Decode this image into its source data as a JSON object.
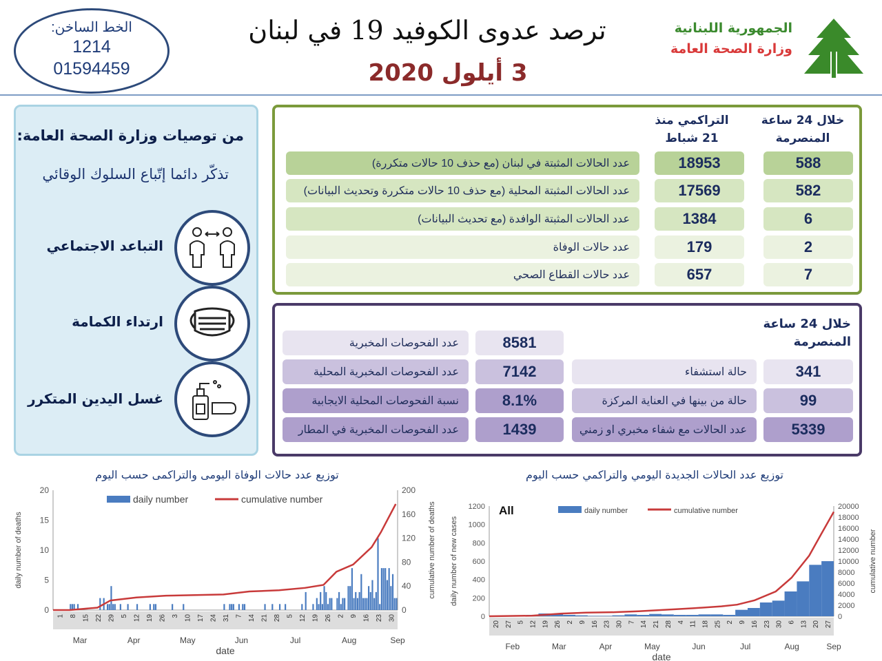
{
  "header": {
    "hotline_label": "الخط الساخن:",
    "hotline_1": "1214",
    "hotline_2": "01594459",
    "title": "ترصد عدوى الكوفيد 19 في لبنان",
    "date": "3 أيلول 2020",
    "republic": "الجمهورية اللبنانية",
    "ministry": "وزارة الصحة العامة",
    "logo_icon": "cedar-tree-icon"
  },
  "recommendations": {
    "heading": "من توصيات وزارة الصحة العامة:",
    "subheading": "تذكّر دائما إتّباع السلوك الوقائي",
    "items": [
      {
        "label": "التباعد الاجتماعي",
        "icon": "social-distancing-icon"
      },
      {
        "label": "ارتداء الكمامة",
        "icon": "face-mask-icon"
      },
      {
        "label": "غسل اليدين المتكرر",
        "icon": "hand-washing-icon"
      }
    ]
  },
  "summary": {
    "col_24h": "خلال 24 ساعة المنصرمة",
    "col_cum": "التراكمي منذ 21 شباط",
    "rows": [
      {
        "label": "عدد الحالات المثبتة في لبنان  (مع حذف 10 حالات متكررة)",
        "cum": "18953",
        "d24": "588"
      },
      {
        "label": "عدد الحالات المثبتة المحلية (مع حذف 10 حالات متكررة وتحديث البيانات)",
        "cum": "17569",
        "d24": "582"
      },
      {
        "label": "عدد الحالات المثبتة الوافدة (مع تحديث البيانات)",
        "cum": "1384",
        "d24": "6"
      },
      {
        "label": "عدد حالات الوفاة",
        "cum": "179",
        "d24": "2"
      },
      {
        "label": "عدد حالات القطاع الصحي",
        "cum": "657",
        "d24": "7"
      }
    ]
  },
  "last24": {
    "heading": "خلال 24 ساعة المنصرمة",
    "tests": [
      {
        "label": "عدد الفحوصات المخبرية",
        "value": "8581"
      },
      {
        "label": "عدد الفحوصات المخبرية  المحلية",
        "value": "7142"
      },
      {
        "label": "نسبة الفحوصات المحلية الايجابية",
        "value": "8.1%"
      },
      {
        "label": "عدد الفحوصات المخبرية في المطار",
        "value": "1439"
      }
    ],
    "hospital": [
      {
        "label": "حالة استشفاء",
        "value": "341"
      },
      {
        "label": "حالة من بينها في العناية المركزة",
        "value": "99"
      },
      {
        "label": "عدد الحالات مع شفاء مخبري او زمني",
        "value": "5339"
      }
    ]
  },
  "chart_data": [
    {
      "type": "bar+line",
      "title": "توزيع عدد حالات  الوفاة اليومى والتراكمى حسب اليوم",
      "xlabel": "date",
      "ylabel": "daily number of deaths",
      "y2label": "cumulative number of deaths",
      "ylim": [
        0,
        20
      ],
      "y2lim": [
        0,
        200
      ],
      "yticks": [
        0,
        5,
        10,
        15,
        20
      ],
      "y2ticks": [
        0,
        40,
        80,
        120,
        160,
        200
      ],
      "xrange": [
        "2020-03-01",
        "2020-09-03"
      ],
      "legend": [
        "daily number",
        "cumulative number"
      ],
      "legend_placement": "top",
      "colors": {
        "bar": "#4a7cc0",
        "line": "#c83a3a"
      },
      "day_ticks": [
        "1",
        "8",
        "15",
        "22",
        "29",
        "5",
        "12",
        "19",
        "26",
        "3",
        "10",
        "17",
        "24",
        "31",
        "7",
        "14",
        "21",
        "28",
        "5",
        "12",
        "19",
        "26",
        "2",
        "9",
        "16",
        "23",
        "30"
      ],
      "months": [
        "Mar",
        "Apr",
        "May",
        "Jun",
        "Jul",
        "Aug",
        "Sep"
      ],
      "daily": [
        [
          "03-10",
          1
        ],
        [
          "03-11",
          1
        ],
        [
          "03-12",
          1
        ],
        [
          "03-14",
          1
        ],
        [
          "03-26",
          2
        ],
        [
          "03-28",
          2
        ],
        [
          "03-30",
          1
        ],
        [
          "03-31",
          1
        ],
        [
          "04-01",
          4
        ],
        [
          "04-02",
          1
        ],
        [
          "04-03",
          1
        ],
        [
          "04-06",
          1
        ],
        [
          "04-10",
          1
        ],
        [
          "04-15",
          1
        ],
        [
          "04-22",
          1
        ],
        [
          "04-24",
          1
        ],
        [
          "04-25",
          1
        ],
        [
          "05-04",
          1
        ],
        [
          "05-10",
          1
        ],
        [
          "06-01",
          1
        ],
        [
          "06-04",
          1
        ],
        [
          "06-05",
          1
        ],
        [
          "06-06",
          1
        ],
        [
          "06-09",
          1
        ],
        [
          "06-11",
          1
        ],
        [
          "06-12",
          1
        ],
        [
          "06-23",
          1
        ],
        [
          "06-27",
          1
        ],
        [
          "07-01",
          1
        ],
        [
          "07-04",
          1
        ],
        [
          "07-13",
          1
        ],
        [
          "07-15",
          3
        ],
        [
          "07-19",
          1
        ],
        [
          "07-21",
          2
        ],
        [
          "07-22",
          1
        ],
        [
          "07-23",
          3
        ],
        [
          "07-24",
          1
        ],
        [
          "07-25",
          4
        ],
        [
          "07-26",
          3
        ],
        [
          "07-27",
          1
        ],
        [
          "07-28",
          2
        ],
        [
          "07-29",
          2
        ],
        [
          "08-01",
          2
        ],
        [
          "08-02",
          3
        ],
        [
          "08-03",
          1
        ],
        [
          "08-04",
          2
        ],
        [
          "08-05",
          2
        ],
        [
          "08-07",
          4
        ],
        [
          "08-08",
          4
        ],
        [
          "08-09",
          7
        ],
        [
          "08-10",
          2
        ],
        [
          "08-11",
          3
        ],
        [
          "08-12",
          2
        ],
        [
          "08-13",
          3
        ],
        [
          "08-14",
          6
        ],
        [
          "08-15",
          2
        ],
        [
          "08-16",
          2
        ],
        [
          "08-17",
          2
        ],
        [
          "08-18",
          4
        ],
        [
          "08-19",
          3
        ],
        [
          "08-20",
          5
        ],
        [
          "08-21",
          2
        ],
        [
          "08-22",
          3
        ],
        [
          "08-23",
          12
        ],
        [
          "08-24",
          1
        ],
        [
          "08-25",
          7
        ],
        [
          "08-26",
          7
        ],
        [
          "08-27",
          7
        ],
        [
          "08-28",
          5
        ],
        [
          "08-29",
          7
        ],
        [
          "08-30",
          4
        ],
        [
          "08-31",
          6
        ],
        [
          "09-01",
          2
        ],
        [
          "09-02",
          2
        ]
      ],
      "cumulative": [
        [
          "03-01",
          0
        ],
        [
          "03-10",
          0
        ],
        [
          "03-25",
          4
        ],
        [
          "04-01",
          16
        ],
        [
          "04-15",
          21
        ],
        [
          "05-01",
          24
        ],
        [
          "06-01",
          26
        ],
        [
          "06-15",
          31
        ],
        [
          "07-01",
          33
        ],
        [
          "07-15",
          37
        ],
        [
          "07-25",
          42
        ],
        [
          "08-01",
          64
        ],
        [
          "08-10",
          76
        ],
        [
          "08-20",
          105
        ],
        [
          "08-25",
          130
        ],
        [
          "09-02",
          177
        ]
      ]
    },
    {
      "type": "bar+line",
      "title": "توزيع عدد الحالات الجديدة اليومي والتراكمي حسب اليوم",
      "label": "All",
      "xlabel": "date",
      "ylabel": "daily number of new cases",
      "y2label": "cumulative number",
      "ylim": [
        0,
        1200
      ],
      "y2lim": [
        0,
        20000
      ],
      "yticks": [
        0,
        200,
        400,
        600,
        800,
        1000,
        1200
      ],
      "y2ticks": [
        0,
        2000,
        4000,
        6000,
        8000,
        10000,
        12000,
        14000,
        16000,
        18000,
        20000
      ],
      "xrange": [
        "2020-02-20",
        "2020-09-03"
      ],
      "legend": [
        "daily number",
        "cumulative number"
      ],
      "legend_placement": "top",
      "colors": {
        "bar": "#4a7cc0",
        "line": "#c83a3a"
      },
      "day_ticks": [
        "20",
        "27",
        "5",
        "12",
        "19",
        "26",
        "2",
        "9",
        "16",
        "23",
        "30",
        "7",
        "14",
        "21",
        "28",
        "4",
        "11",
        "18",
        "25",
        "2",
        "9",
        "16",
        "23",
        "30",
        "6",
        "13",
        "20",
        "27"
      ],
      "months": [
        "Feb",
        "Mar",
        "Apr",
        "May",
        "Jun",
        "Jul",
        "Aug",
        "Sep"
      ],
      "weekly_daily_avg": [
        [
          "02-20",
          1
        ],
        [
          "02-27",
          2
        ],
        [
          "03-05",
          5
        ],
        [
          "03-12",
          15
        ],
        [
          "03-19",
          30
        ],
        [
          "03-26",
          25
        ],
        [
          "04-02",
          15
        ],
        [
          "04-09",
          10
        ],
        [
          "04-16",
          5
        ],
        [
          "04-23",
          5
        ],
        [
          "04-30",
          10
        ],
        [
          "05-07",
          20
        ],
        [
          "05-14",
          15
        ],
        [
          "05-21",
          25
        ],
        [
          "05-28",
          20
        ],
        [
          "06-04",
          15
        ],
        [
          "06-11",
          15
        ],
        [
          "06-18",
          20
        ],
        [
          "06-25",
          20
        ],
        [
          "07-02",
          15
        ],
        [
          "07-09",
          70
        ],
        [
          "07-16",
          90
        ],
        [
          "07-23",
          150
        ],
        [
          "07-30",
          170
        ],
        [
          "08-06",
          270
        ],
        [
          "08-13",
          380
        ],
        [
          "08-20",
          560
        ],
        [
          "08-27",
          600
        ]
      ],
      "cumulative": [
        [
          "02-20",
          1
        ],
        [
          "03-15",
          100
        ],
        [
          "04-01",
          480
        ],
        [
          "04-15",
          650
        ],
        [
          "05-01",
          730
        ],
        [
          "05-15",
          900
        ],
        [
          "06-01",
          1200
        ],
        [
          "06-15",
          1450
        ],
        [
          "07-01",
          1800
        ],
        [
          "07-10",
          2100
        ],
        [
          "07-20",
          2900
        ],
        [
          "08-01",
          4500
        ],
        [
          "08-10",
          7000
        ],
        [
          "08-20",
          11000
        ],
        [
          "08-27",
          15000
        ],
        [
          "09-03",
          18953
        ]
      ]
    }
  ]
}
